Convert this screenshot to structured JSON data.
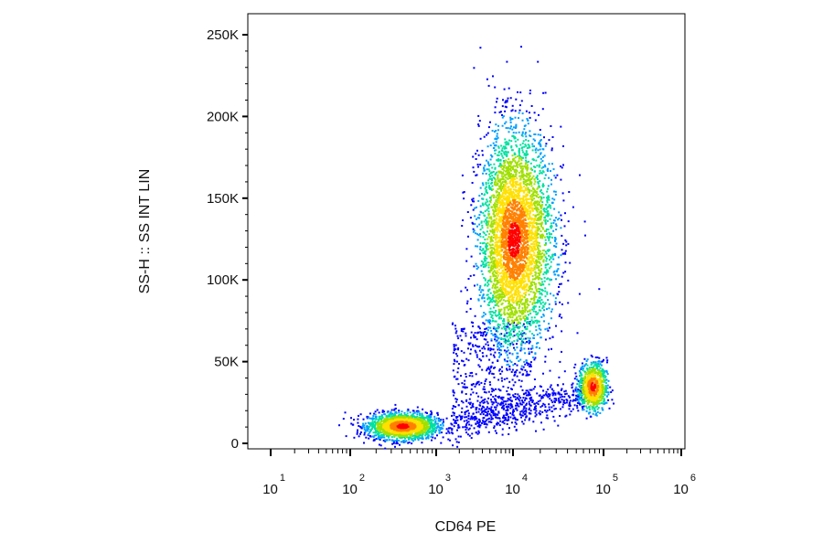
{
  "chart_data": {
    "type": "scatter",
    "subtype": "flow-cytometry-density-plot",
    "xlabel": "CD64 PE",
    "ylabel": "SS-H :: SS INT LIN",
    "x_scale": "log",
    "y_scale": "linear",
    "xlim": [
      10,
      1000000
    ],
    "ylim": [
      -5000,
      262144
    ],
    "x_ticks": [
      {
        "value": 10,
        "base": "10",
        "exp": "1"
      },
      {
        "value": 100,
        "base": "10",
        "exp": "2"
      },
      {
        "value": 1000,
        "base": "10",
        "exp": "3"
      },
      {
        "value": 10000,
        "base": "10",
        "exp": "4"
      },
      {
        "value": 100000,
        "base": "10",
        "exp": "5"
      },
      {
        "value": 1000000,
        "base": "10",
        "exp": "6"
      }
    ],
    "y_ticks": [
      {
        "value": 0,
        "label": "0"
      },
      {
        "value": 50000,
        "label": "50K"
      },
      {
        "value": 100000,
        "label": "100K"
      },
      {
        "value": 150000,
        "label": "150K"
      },
      {
        "value": 200000,
        "label": "200K"
      },
      {
        "value": 250000,
        "label": "250K"
      }
    ],
    "colormap": [
      "#0000ff",
      "#00a0ff",
      "#00e0a0",
      "#a0e000",
      "#ffe000",
      "#ff8000",
      "#ff0000"
    ],
    "populations": [
      {
        "x_center": 400,
        "x_spread_decades": 0.2,
        "y_center": 11000,
        "y_spread": 4000,
        "points": 1900,
        "peak_color": "#ff0000"
      },
      {
        "x_center": 10000,
        "x_spread_decades": 0.22,
        "y_center": 125000,
        "y_spread": 33000,
        "points": 4200,
        "peak_color": "#a0e000"
      },
      {
        "x_center": 75000,
        "x_spread_decades": 0.08,
        "y_center": 35000,
        "y_spread": 7500,
        "points": 800,
        "peak_color": "#ffe000"
      }
    ]
  }
}
